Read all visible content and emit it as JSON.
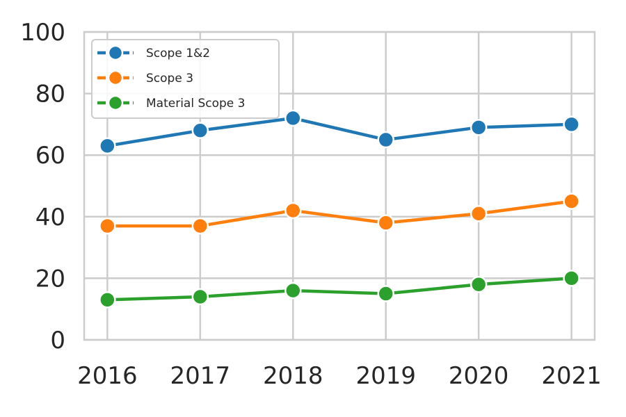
{
  "chart_data": {
    "type": "line",
    "x": [
      2016,
      2017,
      2018,
      2019,
      2020,
      2021
    ],
    "x_tick_labels": [
      "2016",
      "2017",
      "2018",
      "2019",
      "2020",
      "2021"
    ],
    "y_tick_labels": [
      "0",
      "20",
      "40",
      "60",
      "80",
      "100"
    ],
    "y_ticks": [
      0,
      20,
      40,
      60,
      80,
      100
    ],
    "ylim": [
      0,
      100
    ],
    "xlim": [
      2015.75,
      2021.25
    ],
    "grid": true,
    "legend_position": "upper-left",
    "series": [
      {
        "name": "Scope 1&2",
        "color": "#1f77b4",
        "values": [
          63,
          68,
          72,
          65,
          69,
          70
        ]
      },
      {
        "name": "Scope 3",
        "color": "#ff7f0e",
        "values": [
          37,
          37,
          42,
          38,
          41,
          45
        ]
      },
      {
        "name": "Material Scope 3",
        "color": "#2ca02c",
        "values": [
          13,
          14,
          16,
          15,
          18,
          20
        ]
      }
    ],
    "title": "",
    "xlabel": "",
    "ylabel": ""
  }
}
